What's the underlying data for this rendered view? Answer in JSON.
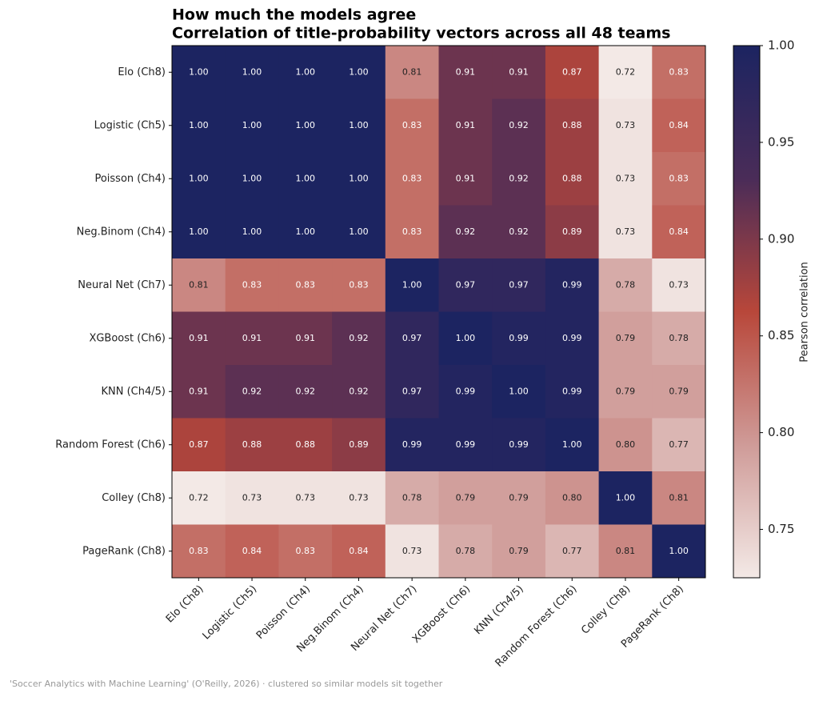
{
  "chart_data": {
    "type": "heatmap",
    "title": [
      "How much the models agree",
      "Correlation of title-probability vectors across all 48 teams"
    ],
    "categories": [
      "Elo (Ch8)",
      "Logistic (Ch5)",
      "Poisson (Ch4)",
      "Neg.Binom (Ch4)",
      "Neural Net (Ch7)",
      "XGBoost (Ch6)",
      "KNN (Ch4/5)",
      "Random Forest (Ch6)",
      "Colley (Ch8)",
      "PageRank (Ch8)"
    ],
    "values": [
      [
        1,
        1,
        1,
        1,
        0.81,
        0.91,
        0.91,
        0.87,
        0.72,
        0.83
      ],
      [
        1,
        1,
        1,
        1,
        0.83,
        0.91,
        0.92,
        0.88,
        0.73,
        0.84
      ],
      [
        1,
        1,
        1,
        1,
        0.83,
        0.91,
        0.92,
        0.88,
        0.73,
        0.83
      ],
      [
        1,
        1,
        1,
        1,
        0.83,
        0.92,
        0.92,
        0.89,
        0.73,
        0.84
      ],
      [
        0.81,
        0.83,
        0.83,
        0.83,
        1,
        0.97,
        0.97,
        0.99,
        0.78,
        0.73
      ],
      [
        0.91,
        0.91,
        0.91,
        0.92,
        0.97,
        1,
        0.99,
        0.99,
        0.79,
        0.78
      ],
      [
        0.91,
        0.92,
        0.92,
        0.92,
        0.97,
        0.99,
        1,
        0.99,
        0.79,
        0.79
      ],
      [
        0.87,
        0.88,
        0.88,
        0.89,
        0.99,
        0.99,
        0.99,
        1,
        0.8,
        0.77
      ],
      [
        0.72,
        0.73,
        0.73,
        0.73,
        0.78,
        0.79,
        0.79,
        0.8,
        1,
        0.81
      ],
      [
        0.83,
        0.84,
        0.83,
        0.84,
        0.73,
        0.78,
        0.79,
        0.77,
        0.81,
        1
      ]
    ],
    "value_labels": [
      [
        "1.00",
        "1.00",
        "1.00",
        "1.00",
        "0.81",
        "0.91",
        "0.91",
        "0.87",
        "0.72",
        "0.83"
      ],
      [
        "1.00",
        "1.00",
        "1.00",
        "1.00",
        "0.83",
        "0.91",
        "0.92",
        "0.88",
        "0.73",
        "0.84"
      ],
      [
        "1.00",
        "1.00",
        "1.00",
        "1.00",
        "0.83",
        "0.91",
        "0.92",
        "0.88",
        "0.73",
        "0.83"
      ],
      [
        "1.00",
        "1.00",
        "1.00",
        "1.00",
        "0.83",
        "0.92",
        "0.92",
        "0.89",
        "0.73",
        "0.84"
      ],
      [
        "0.81",
        "0.83",
        "0.83",
        "0.83",
        "1.00",
        "0.97",
        "0.97",
        "0.99",
        "0.78",
        "0.73"
      ],
      [
        "0.91",
        "0.91",
        "0.91",
        "0.92",
        "0.97",
        "1.00",
        "0.99",
        "0.99",
        "0.79",
        "0.78"
      ],
      [
        "0.91",
        "0.92",
        "0.92",
        "0.92",
        "0.97",
        "0.99",
        "1.00",
        "0.99",
        "0.79",
        "0.79"
      ],
      [
        "0.87",
        "0.88",
        "0.88",
        "0.89",
        "0.99",
        "0.99",
        "0.99",
        "1.00",
        "0.80",
        "0.77"
      ],
      [
        "0.72",
        "0.73",
        "0.73",
        "0.73",
        "0.78",
        "0.79",
        "0.79",
        "0.80",
        "1.00",
        "0.81"
      ],
      [
        "0.83",
        "0.84",
        "0.83",
        "0.84",
        "0.73",
        "0.78",
        "0.79",
        "0.77",
        "0.81",
        "1.00"
      ]
    ],
    "colorbar_label": "Pearson correlation",
    "clim": [
      0.725,
      1
    ],
    "cticks": [
      0.75,
      {
        "value": 0.8,
        "label": "0.80"
      },
      0.85,
      {
        "value": 0.9,
        "label": "0.90"
      },
      0.95,
      {
        "value": 1,
        "label": "1.00"
      }
    ],
    "colormap": [
      "#f3e9e6",
      "#cf9b98",
      "#b8473a",
      "#4a2c58",
      "#1c2461"
    ],
    "footnote": "'Soccer Analytics with Machine Learning' (O'Reilly, 2026) · clustered so similar models sit together"
  }
}
